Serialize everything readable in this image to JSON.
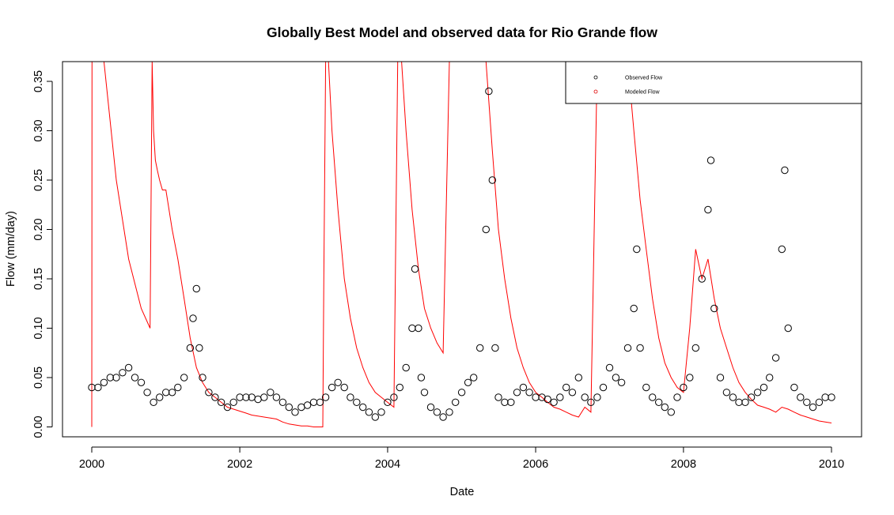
{
  "chart_data": {
    "type": "scatter",
    "title": "Globally Best Model and observed data for Rio Grande flow",
    "xlabel": "Date",
    "ylabel": "Flow (mm/day)",
    "xlim": [
      "2000-01-01",
      "2010-01-01"
    ],
    "ylim": [
      -0.01,
      0.37
    ],
    "x_ticks": [
      "2000-01-01",
      "2002-01-01",
      "2004-01-01",
      "2006-01-01",
      "2008-01-01",
      "2010-01-01"
    ],
    "x_tick_labels": [
      "2000",
      "2002",
      "2004",
      "2006",
      "2008",
      "2010"
    ],
    "y_ticks": [
      0.0,
      0.05,
      0.1,
      0.15,
      0.2,
      0.25,
      0.3,
      0.35
    ],
    "y_tick_labels": [
      "0.00",
      "0.05",
      "0.10",
      "0.15",
      "0.20",
      "0.25",
      "0.30",
      "0.35"
    ],
    "legend_position": "top-right",
    "grid": false,
    "series": [
      {
        "name": "Observed Flow",
        "kind": "scatter",
        "marker": "open-circle",
        "color": "#000000",
        "x": [
          "2000-01-01",
          "2000-02-01",
          "2000-03-01",
          "2000-04-01",
          "2000-05-01",
          "2000-06-01",
          "2000-07-01",
          "2000-08-01",
          "2000-09-01",
          "2000-10-01",
          "2000-11-01",
          "2000-12-01",
          "2001-01-01",
          "2001-02-01",
          "2001-03-01",
          "2001-04-01",
          "2001-05-01",
          "2001-05-15",
          "2001-06-01",
          "2001-06-15",
          "2001-07-01",
          "2001-08-01",
          "2001-09-01",
          "2001-10-01",
          "2001-11-01",
          "2001-12-01",
          "2002-01-01",
          "2002-02-01",
          "2002-03-01",
          "2002-04-01",
          "2002-05-01",
          "2002-06-01",
          "2002-07-01",
          "2002-08-01",
          "2002-09-01",
          "2002-10-01",
          "2002-11-01",
          "2002-12-01",
          "2003-01-01",
          "2003-02-01",
          "2003-03-01",
          "2003-04-01",
          "2003-05-01",
          "2003-06-01",
          "2003-07-01",
          "2003-08-01",
          "2003-09-01",
          "2003-10-01",
          "2003-11-01",
          "2003-12-01",
          "2004-01-01",
          "2004-02-01",
          "2004-03-01",
          "2004-04-01",
          "2004-05-01",
          "2004-05-15",
          "2004-06-01",
          "2004-06-15",
          "2004-07-01",
          "2004-08-01",
          "2004-09-01",
          "2004-10-01",
          "2004-11-01",
          "2004-12-01",
          "2005-01-01",
          "2005-02-01",
          "2005-03-01",
          "2005-04-01",
          "2005-05-01",
          "2005-05-15",
          "2005-06-01",
          "2005-06-15",
          "2005-07-01",
          "2005-08-01",
          "2005-09-01",
          "2005-10-01",
          "2005-11-01",
          "2005-12-01",
          "2006-01-01",
          "2006-02-01",
          "2006-03-01",
          "2006-04-01",
          "2006-05-01",
          "2006-06-01",
          "2006-07-01",
          "2006-08-01",
          "2006-09-01",
          "2006-10-01",
          "2006-11-01",
          "2006-12-01",
          "2007-01-01",
          "2007-02-01",
          "2007-03-01",
          "2007-04-01",
          "2007-05-01",
          "2007-05-15",
          "2007-06-01",
          "2007-07-01",
          "2007-08-01",
          "2007-09-01",
          "2007-10-01",
          "2007-11-01",
          "2007-12-01",
          "2008-01-01",
          "2008-02-01",
          "2008-03-01",
          "2008-04-01",
          "2008-05-01",
          "2008-05-15",
          "2008-06-01",
          "2008-07-01",
          "2008-08-01",
          "2008-09-01",
          "2008-10-01",
          "2008-11-01",
          "2008-12-01",
          "2009-01-01",
          "2009-02-01",
          "2009-03-01",
          "2009-04-01",
          "2009-05-01",
          "2009-05-15",
          "2009-06-01",
          "2009-07-01",
          "2009-08-01",
          "2009-09-01",
          "2009-10-01",
          "2009-11-01",
          "2009-12-01",
          "2010-01-01"
        ],
        "y": [
          0.04,
          0.04,
          0.045,
          0.05,
          0.05,
          0.055,
          0.06,
          0.05,
          0.045,
          0.035,
          0.025,
          0.03,
          0.035,
          0.035,
          0.04,
          0.05,
          0.08,
          0.11,
          0.14,
          0.08,
          0.05,
          0.035,
          0.03,
          0.025,
          0.02,
          0.025,
          0.03,
          0.03,
          0.03,
          0.028,
          0.03,
          0.035,
          0.03,
          0.025,
          0.02,
          0.015,
          0.02,
          0.022,
          0.025,
          0.025,
          0.03,
          0.04,
          0.045,
          0.04,
          0.03,
          0.025,
          0.02,
          0.015,
          0.01,
          0.015,
          0.025,
          0.03,
          0.04,
          0.06,
          0.1,
          0.16,
          0.1,
          0.05,
          0.035,
          0.02,
          0.015,
          0.01,
          0.015,
          0.025,
          0.035,
          0.045,
          0.05,
          0.08,
          0.2,
          0.34,
          0.25,
          0.08,
          0.03,
          0.025,
          0.025,
          0.035,
          0.04,
          0.035,
          0.03,
          0.03,
          0.028,
          0.025,
          0.03,
          0.04,
          0.035,
          0.05,
          0.03,
          0.025,
          0.03,
          0.04,
          0.06,
          0.05,
          0.045,
          0.08,
          0.12,
          0.18,
          0.08,
          0.04,
          0.03,
          0.025,
          0.02,
          0.015,
          0.03,
          0.04,
          0.05,
          0.08,
          0.15,
          0.22,
          0.27,
          0.12,
          0.05,
          0.035,
          0.03,
          0.025,
          0.025,
          0.03,
          0.035,
          0.04,
          0.05,
          0.07,
          0.18,
          0.26,
          0.1,
          0.04,
          0.03,
          0.025,
          0.02,
          0.025,
          0.03,
          0.03
        ]
      },
      {
        "name": "Modeled Flow",
        "kind": "line",
        "color": "#ff0000",
        "x": [
          "2000-01-01",
          "2000-01-02",
          "2000-01-03",
          "2000-03-01",
          "2000-05-01",
          "2000-07-01",
          "2000-09-01",
          "2000-10-15",
          "2000-10-25",
          "2000-11-01",
          "2000-11-10",
          "2000-11-20",
          "2000-12-01",
          "2000-12-15",
          "2001-01-01",
          "2001-02-01",
          "2001-03-01",
          "2001-04-01",
          "2001-05-01",
          "2001-06-01",
          "2001-07-01",
          "2001-08-01",
          "2001-09-01",
          "2001-10-01",
          "2001-11-01",
          "2001-12-01",
          "2002-01-01",
          "2002-02-01",
          "2002-03-01",
          "2002-04-01",
          "2002-05-01",
          "2002-06-01",
          "2002-07-01",
          "2002-08-01",
          "2002-09-01",
          "2002-10-01",
          "2002-11-01",
          "2002-12-01",
          "2003-01-01",
          "2003-02-15",
          "2003-02-20",
          "2003-03-01",
          "2003-03-15",
          "2003-04-01",
          "2003-05-01",
          "2003-06-01",
          "2003-07-01",
          "2003-08-01",
          "2003-09-01",
          "2003-10-01",
          "2003-11-01",
          "2003-12-01",
          "2004-01-01",
          "2004-02-01",
          "2004-02-20",
          "2004-03-01",
          "2004-03-10",
          "2004-04-01",
          "2004-05-01",
          "2004-06-01",
          "2004-07-01",
          "2004-08-01",
          "2004-09-01",
          "2004-10-01",
          "2004-11-01",
          "2004-12-01",
          "2005-01-01",
          "2005-02-01",
          "2005-03-01",
          "2005-04-01",
          "2005-05-01",
          "2005-06-01",
          "2005-07-01",
          "2005-08-01",
          "2005-09-01",
          "2005-10-01",
          "2005-11-01",
          "2005-12-01",
          "2006-01-01",
          "2006-02-01",
          "2006-03-01",
          "2006-04-01",
          "2006-05-01",
          "2006-06-01",
          "2006-07-01",
          "2006-08-01",
          "2006-09-01",
          "2006-10-01",
          "2006-11-01",
          "2006-12-01",
          "2007-01-01",
          "2007-02-01",
          "2007-03-01",
          "2007-04-01",
          "2007-05-01",
          "2007-06-01",
          "2007-07-01",
          "2007-08-01",
          "2007-09-01",
          "2007-10-01",
          "2007-11-01",
          "2007-12-01",
          "2008-01-01",
          "2008-02-01",
          "2008-03-01",
          "2008-04-01",
          "2008-05-01",
          "2008-06-01",
          "2008-07-01",
          "2008-08-01",
          "2008-09-01",
          "2008-10-01",
          "2008-11-01",
          "2008-12-01",
          "2009-01-01",
          "2009-02-01",
          "2009-03-01",
          "2009-04-01",
          "2009-05-01",
          "2009-06-01",
          "2009-07-01",
          "2009-08-01",
          "2009-09-01",
          "2009-10-01",
          "2009-11-01",
          "2009-12-01",
          "2010-01-01"
        ],
        "y": [
          0.0,
          0.37,
          0.37,
          0.37,
          0.25,
          0.17,
          0.12,
          0.1,
          0.37,
          0.3,
          0.27,
          0.26,
          0.25,
          0.24,
          0.24,
          0.2,
          0.17,
          0.13,
          0.09,
          0.06,
          0.045,
          0.035,
          0.03,
          0.025,
          0.02,
          0.018,
          0.016,
          0.014,
          0.012,
          0.011,
          0.01,
          0.009,
          0.008,
          0.005,
          0.003,
          0.002,
          0.001,
          0.001,
          0.0,
          0.0,
          0.15,
          0.37,
          0.37,
          0.3,
          0.22,
          0.15,
          0.11,
          0.08,
          0.06,
          0.045,
          0.035,
          0.03,
          0.025,
          0.02,
          0.37,
          0.37,
          0.37,
          0.3,
          0.22,
          0.16,
          0.12,
          0.1,
          0.085,
          0.075,
          0.37,
          0.37,
          0.37,
          0.37,
          0.37,
          0.37,
          0.37,
          0.28,
          0.2,
          0.15,
          0.11,
          0.08,
          0.06,
          0.045,
          0.035,
          0.03,
          0.025,
          0.02,
          0.018,
          0.015,
          0.012,
          0.01,
          0.02,
          0.015,
          0.37,
          0.37,
          0.37,
          0.37,
          0.37,
          0.37,
          0.3,
          0.23,
          0.18,
          0.13,
          0.09,
          0.065,
          0.05,
          0.04,
          0.035,
          0.1,
          0.18,
          0.15,
          0.17,
          0.13,
          0.1,
          0.08,
          0.06,
          0.045,
          0.035,
          0.028,
          0.022,
          0.02,
          0.018,
          0.015,
          0.02,
          0.018,
          0.015,
          0.012,
          0.01,
          0.008,
          0.006,
          0.005,
          0.004
        ]
      }
    ]
  }
}
